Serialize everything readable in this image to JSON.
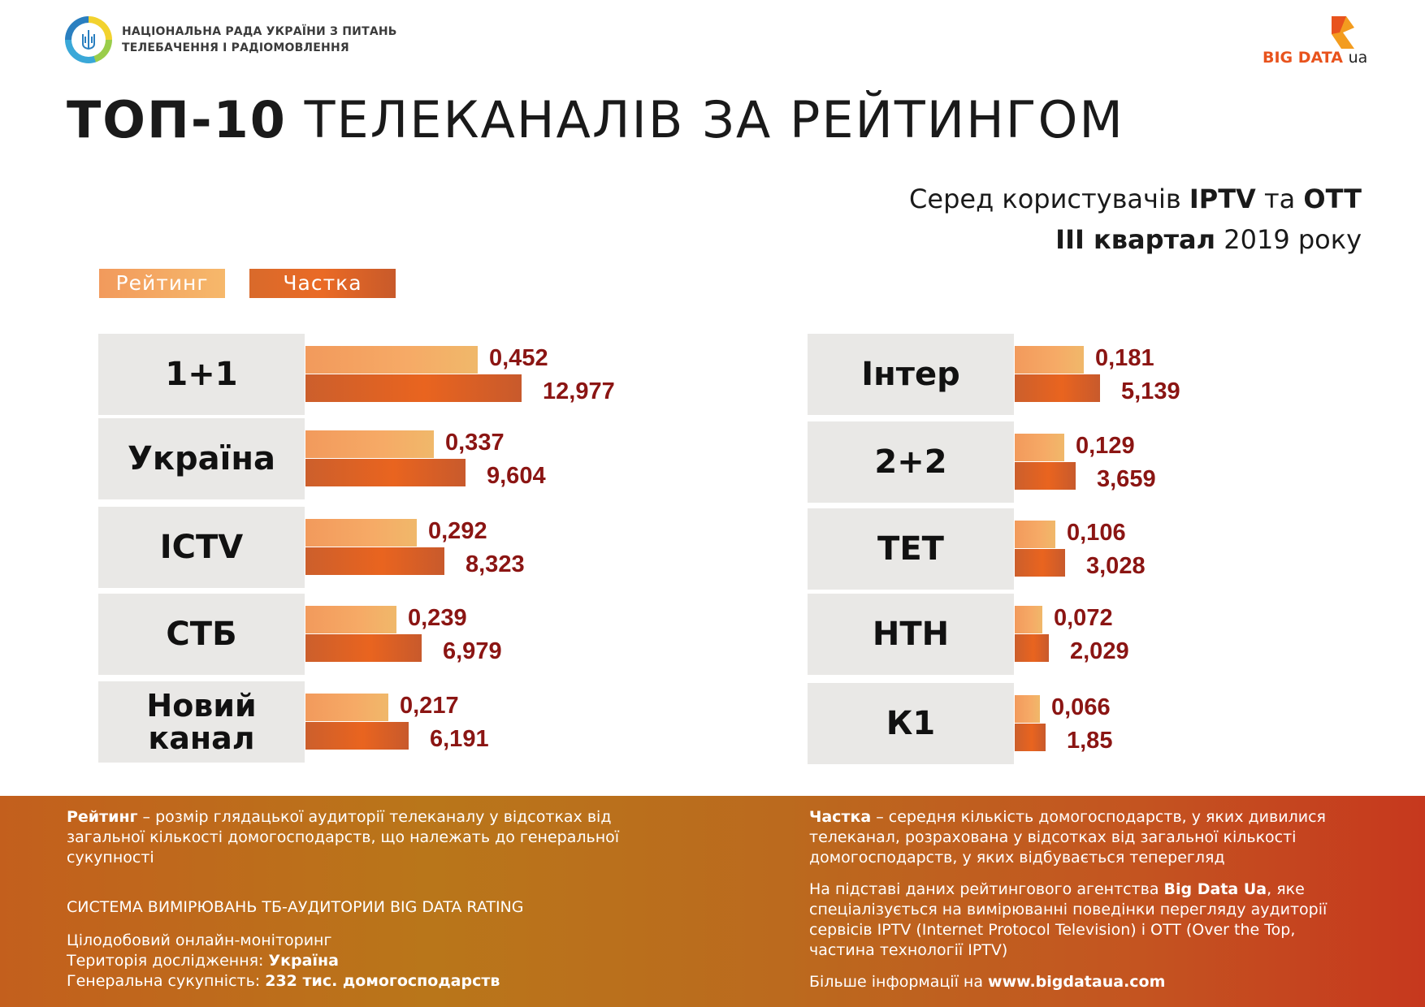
{
  "header": {
    "org_line1": "НАЦІОНАЛЬНА РАДА УКРАЇНИ З ПИТАНЬ",
    "org_line2": "ТЕЛЕБАЧЕННЯ І РАДІОМОВЛЕННЯ",
    "logo_main": "BIG DATA",
    "logo_suffix": "ua",
    "title_bold": "ТОП-10",
    "title_rest": " ТЕЛЕКАНАЛІВ ЗА РЕЙТИНГОМ",
    "subtitle_pre": "Серед користувачів ",
    "subtitle_b1": "IPTV",
    "subtitle_mid": " та ",
    "subtitle_b2": "OTT",
    "period_bold": "III квартал",
    "period_rest": " 2019 року"
  },
  "chart_data": {
    "type": "bar",
    "orientation": "horizontal",
    "series": [
      {
        "name": "Рейтинг",
        "color": "#f29a5c"
      },
      {
        "name": "Частка",
        "color": "#e0622a"
      }
    ],
    "groups": [
      {
        "column": "left",
        "items": [
          {
            "channel": "1+1",
            "rating": 0.452,
            "share": 12.977,
            "rating_label": "0,452",
            "share_label": "12,977"
          },
          {
            "channel": "Україна",
            "rating": 0.337,
            "share": 9.604,
            "rating_label": "0,337",
            "share_label": "9,604"
          },
          {
            "channel": "ICTV",
            "rating": 0.292,
            "share": 8.323,
            "rating_label": "0,292",
            "share_label": "8,323"
          },
          {
            "channel": "СТБ",
            "rating": 0.239,
            "share": 6.979,
            "rating_label": "0,239",
            "share_label": "6,979"
          },
          {
            "channel": "Новий канал",
            "rating": 0.217,
            "share": 6.191,
            "rating_label": "0,217",
            "share_label": "6,191"
          }
        ]
      },
      {
        "column": "right",
        "items": [
          {
            "channel": "Інтер",
            "rating": 0.181,
            "share": 5.139,
            "rating_label": "0,181",
            "share_label": "5,139"
          },
          {
            "channel": "2+2",
            "rating": 0.129,
            "share": 3.659,
            "rating_label": "0,129",
            "share_label": "3,659"
          },
          {
            "channel": "ТЕТ",
            "rating": 0.106,
            "share": 3.028,
            "rating_label": "0,106",
            "share_label": "3,028"
          },
          {
            "channel": "НТН",
            "rating": 0.072,
            "share": 2.029,
            "rating_label": "0,072",
            "share_label": "2,029"
          },
          {
            "channel": "К1",
            "rating": 0.066,
            "share": 1.85,
            "rating_label": "0,066",
            "share_label": "1,85"
          }
        ]
      }
    ],
    "legend_placement": "top-left"
  },
  "footer": {
    "rating_term": "Рейтинг",
    "rating_def": " – розмір глядацької аудиторії телеканалу у відсотках від загальної кількості домогосподарств, що належать до генеральної сукупності",
    "system_title": "СИСТЕМА ВИМІРЮВАНЬ ТБ-АУДИТОРИИ BIG DATA RATING",
    "monitoring": "Цілодобовий онлайн-моніторинг",
    "territory_label": "Територія дослідження: ",
    "territory_value": "Україна",
    "universe_label": "Генеральна сукупність: ",
    "universe_value": "232 тис. домогосподарств",
    "share_term": "Частка",
    "share_def": " – середня кількість домогосподарств, у яких дивилися телеканал, розрахована у відсотках від загальної кількості домогосподарств, у яких відбувається теперегляд",
    "source_pre": "На підставі даних рейтингового агентства ",
    "source_name": "Big Data Ua",
    "source_post": ", яке спеціалізується на вимірюванні поведінки перегляду аудиторії сервісів IPTV (Internet Protocol Television) і OTT (Over the Top, частина технології IPTV)",
    "more_pre": "Більше інформації на ",
    "more_url": "www.bigdataua.com"
  }
}
